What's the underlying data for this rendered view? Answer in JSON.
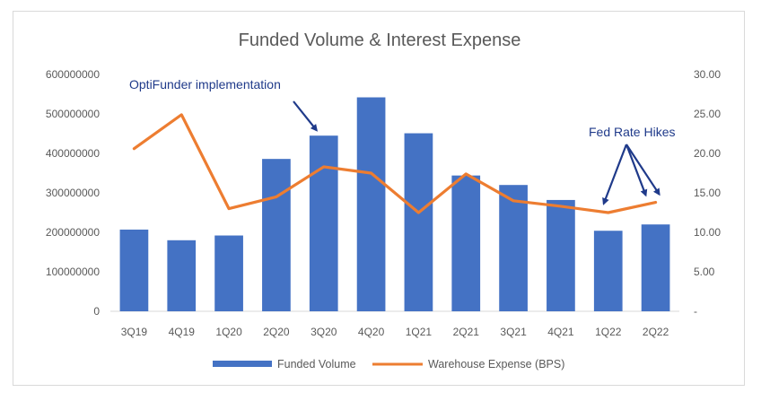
{
  "chart_data": {
    "type": "bar",
    "title": "Funded Volume & Interest Expense",
    "categories": [
      "3Q19",
      "4Q19",
      "1Q20",
      "2Q20",
      "3Q20",
      "4Q20",
      "1Q21",
      "2Q21",
      "3Q21",
      "4Q21",
      "1Q22",
      "2Q22"
    ],
    "series": [
      {
        "name": "Funded Volume",
        "type": "bar",
        "axis": "left",
        "color": "#4472c4",
        "values": [
          207000000,
          180000000,
          192000000,
          386000000,
          445000000,
          542000000,
          451000000,
          344000000,
          320000000,
          282000000,
          204000000,
          220000000
        ]
      },
      {
        "name": "Warehouse Expense (BPS)",
        "type": "line",
        "axis": "right",
        "color": "#ed7d31",
        "values": [
          20.6,
          24.9,
          13.0,
          14.5,
          18.3,
          17.5,
          12.5,
          17.4,
          14.0,
          13.3,
          12.5,
          13.8
        ]
      }
    ],
    "y_left": {
      "min": 0,
      "max": 600000000,
      "ticks": [
        "0",
        "100000000",
        "200000000",
        "300000000",
        "400000000",
        "500000000",
        "600000000"
      ]
    },
    "y_right": {
      "min": 0,
      "max": 30,
      "ticks": [
        "-",
        "5.00",
        "10.00",
        "15.00",
        "20.00",
        "25.00",
        "30.00"
      ]
    },
    "grid": false,
    "legend_position": "bottom",
    "annotations": [
      {
        "text": "OptiFunder implementation",
        "color": "#1f3a8a",
        "arrow_to_category": "3Q20"
      },
      {
        "text": "Fed Rate Hikes",
        "color": "#1f3a8a",
        "arrow_to_categories": [
          "1Q22",
          "2Q22"
        ]
      }
    ]
  }
}
